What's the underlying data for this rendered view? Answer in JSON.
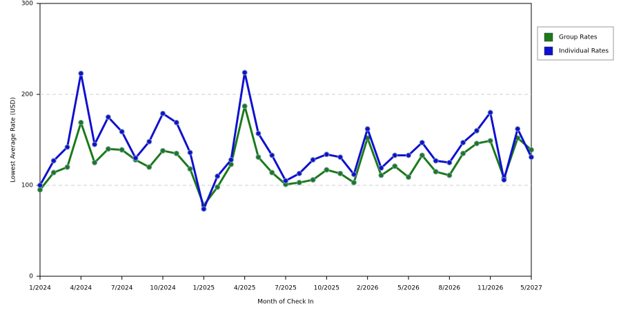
{
  "chart_data": {
    "type": "line",
    "x_label": "Month of Check In",
    "y_label": "Lowest Average Rate (USD)",
    "categories": [
      "1/2024",
      null,
      null,
      "4/2024",
      null,
      null,
      "7/2024",
      null,
      null,
      "10/2024",
      null,
      null,
      "1/2025",
      null,
      null,
      "4/2025",
      null,
      null,
      "7/2025",
      null,
      null,
      "10/2025",
      null,
      null,
      "2/2026",
      null,
      null,
      "5/2026",
      null,
      null,
      "8/2026",
      null,
      null,
      "11/2026",
      null,
      null,
      "5/2027"
    ],
    "series": [
      {
        "name": "Group Rates",
        "color": "#1a7a1a",
        "values": [
          95,
          114,
          120,
          169,
          125,
          140,
          139,
          128,
          120,
          138,
          135,
          118,
          78,
          98,
          123,
          187,
          131,
          114,
          101,
          103,
          106,
          117,
          113,
          103,
          152,
          111,
          121,
          109,
          133,
          115,
          111,
          135,
          146,
          149,
          108,
          152,
          139
        ]
      },
      {
        "name": "Individual Rates",
        "color": "#1010d0",
        "values": [
          100,
          127,
          142,
          223,
          145,
          175,
          159,
          130,
          148,
          179,
          169,
          136,
          74,
          110,
          128,
          224,
          157,
          133,
          105,
          113,
          128,
          134,
          131,
          112,
          162,
          119,
          133,
          133,
          147,
          127,
          125,
          147,
          160,
          180,
          106,
          162,
          131
        ]
      }
    ],
    "ylim": [
      0,
      300
    ],
    "yticks": [
      0,
      100,
      200,
      300
    ],
    "grid": true,
    "legend": "right"
  }
}
